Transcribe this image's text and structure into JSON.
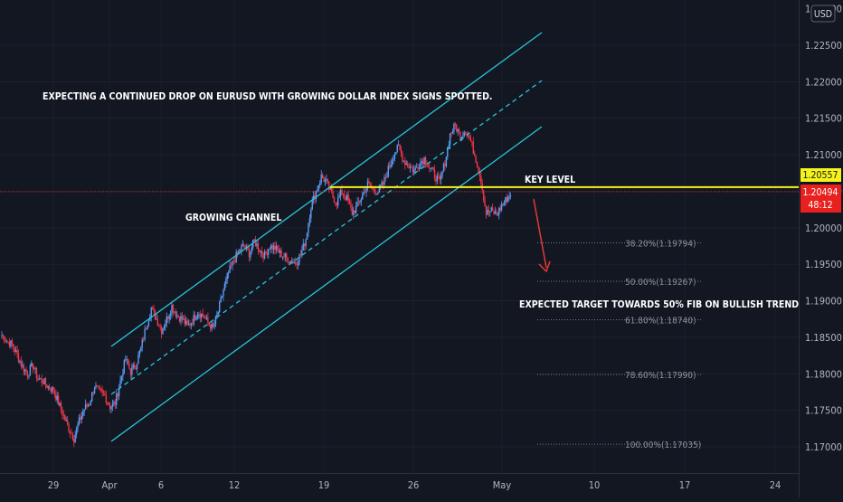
{
  "currency_badge": "USD",
  "chart_data": {
    "type": "candlestick",
    "symbol_currency": "USD",
    "x_tick_labels": [
      "29",
      "Apr",
      "6",
      "12",
      "19",
      "26",
      "May",
      "10",
      "17",
      "24"
    ],
    "y_ticks": [
      "1.22500",
      "1.22000",
      "1.21500",
      "1.21000",
      "1.20500",
      "1.20000",
      "1.19500",
      "1.19000",
      "1.18500",
      "1.18000",
      "1.17500",
      "1.17000"
    ],
    "y_top_partial": "1.23000",
    "y_range": [
      1.1685,
      1.2297
    ],
    "key_level": {
      "value": 1.20557,
      "label": "1.20557"
    },
    "current_price": {
      "value": 1.20494,
      "label": "1.20494",
      "countdown": "48:12"
    },
    "fib_levels": [
      {
        "label": "38.20%(1.19794)",
        "value": 1.19794
      },
      {
        "label": "50.00%(1.19267)",
        "value": 1.19267
      },
      {
        "label": "61.80%(1.18740)",
        "value": 1.1874
      },
      {
        "label": "78.60%(1.17990)",
        "value": 1.1799
      },
      {
        "label": "100.00%(1.17035)",
        "value": 1.17035
      }
    ],
    "annotations": {
      "headline": "EXPECTING A CONTINUED DROP ON EURUSD WITH GROWING DOLLAR INDEX SIGNS SPOTTED.",
      "channel": "GROWING CHANNEL",
      "key_level": "KEY LEVEL",
      "target": "EXPECTED TARGET TOWARDS 50% FIB ON BULLISH TREND"
    },
    "price_path": [
      [
        1,
        1.1853
      ],
      [
        2,
        1.1845
      ],
      [
        3,
        1.184
      ],
      [
        4,
        1.1825
      ],
      [
        5,
        1.181
      ],
      [
        6,
        1.18
      ],
      [
        7,
        1.1812
      ],
      [
        8,
        1.1793
      ],
      [
        9,
        1.179
      ],
      [
        10,
        1.1782
      ],
      [
        11,
        1.1778
      ],
      [
        12,
        1.176
      ],
      [
        13,
        1.1742
      ],
      [
        14,
        1.1725
      ],
      [
        15,
        1.1712
      ],
      [
        16,
        1.1735
      ],
      [
        17,
        1.1752
      ],
      [
        18,
        1.176
      ],
      [
        19,
        1.1783
      ],
      [
        20,
        1.1775
      ],
      [
        21,
        1.177
      ],
      [
        22,
        1.1755
      ],
      [
        23,
        1.176
      ],
      [
        24,
        1.179
      ],
      [
        25,
        1.182
      ],
      [
        26,
        1.1803
      ],
      [
        27,
        1.1812
      ],
      [
        28,
        1.1835
      ],
      [
        29,
        1.1865
      ],
      [
        30,
        1.189
      ],
      [
        31,
        1.1875
      ],
      [
        32,
        1.186
      ],
      [
        33,
        1.1875
      ],
      [
        34,
        1.1893
      ],
      [
        35,
        1.188
      ],
      [
        36,
        1.1875
      ],
      [
        37,
        1.1865
      ],
      [
        38,
        1.1873
      ],
      [
        39,
        1.1885
      ],
      [
        40,
        1.188
      ],
      [
        41,
        1.187
      ],
      [
        42,
        1.1862
      ],
      [
        43,
        1.1885
      ],
      [
        44,
        1.1915
      ],
      [
        45,
        1.1938
      ],
      [
        46,
        1.1955
      ],
      [
        47,
        1.1968
      ],
      [
        48,
        1.1975
      ],
      [
        49,
        1.1965
      ],
      [
        50,
        1.1982
      ],
      [
        51,
        1.197
      ],
      [
        52,
        1.1962
      ],
      [
        53,
        1.1975
      ],
      [
        54,
        1.1972
      ],
      [
        55,
        1.1965
      ],
      [
        56,
        1.196
      ],
      [
        57,
        1.1955
      ],
      [
        58,
        1.1952
      ],
      [
        59,
        1.1963
      ],
      [
        60,
        1.1985
      ],
      [
        61,
        1.203
      ],
      [
        62,
        1.205
      ],
      [
        63,
        1.207
      ],
      [
        64,
        1.2062
      ],
      [
        65,
        1.2045
      ],
      [
        66,
        1.2035
      ],
      [
        67,
        1.205
      ],
      [
        68,
        1.204
      ],
      [
        69,
        1.202
      ],
      [
        70,
        1.203
      ],
      [
        71,
        1.2045
      ],
      [
        72,
        1.206
      ],
      [
        73,
        1.2052
      ],
      [
        74,
        1.205
      ],
      [
        75,
        1.206
      ],
      [
        76,
        1.208
      ],
      [
        77,
        1.21
      ],
      [
        78,
        1.211
      ],
      [
        79,
        1.2092
      ],
      [
        80,
        1.2085
      ],
      [
        81,
        1.2078
      ],
      [
        82,
        1.2088
      ],
      [
        83,
        1.2095
      ],
      [
        84,
        1.2082
      ],
      [
        85,
        1.2072
      ],
      [
        86,
        1.2062
      ],
      [
        87,
        1.209
      ],
      [
        88,
        1.2128
      ],
      [
        89,
        1.214
      ],
      [
        90,
        1.2125
      ],
      [
        91,
        1.2135
      ],
      [
        92,
        1.2118
      ],
      [
        93,
        1.2095
      ],
      [
        94,
        1.2065
      ],
      [
        95,
        1.202
      ],
      [
        96,
        1.2023
      ],
      [
        97,
        1.2018
      ],
      [
        98,
        1.203
      ],
      [
        99,
        1.204
      ],
      [
        100,
        1.20494
      ]
    ]
  }
}
